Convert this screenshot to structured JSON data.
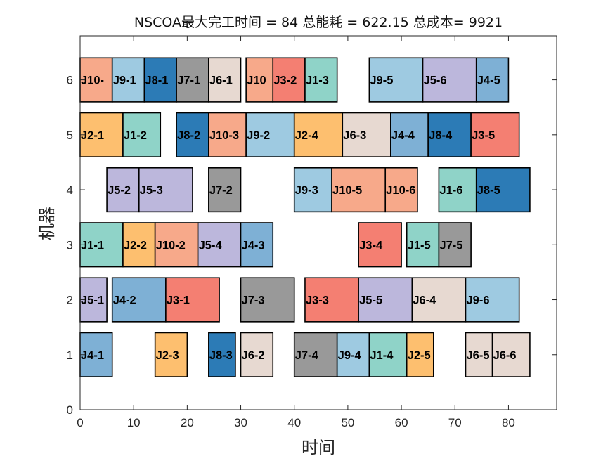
{
  "chart_data": {
    "type": "gantt",
    "title": "NSCOA最大完工时间 = 84 总能耗 = 622.15 总成本= 9921",
    "xlabel": "时间",
    "ylabel": "机器",
    "xlim": [
      0,
      89
    ],
    "ylim": [
      0,
      6.8
    ],
    "xticks": [
      "0",
      "10",
      "20",
      "30",
      "40",
      "50",
      "60",
      "70",
      "80"
    ],
    "yticks": [
      "0",
      "1",
      "2",
      "3",
      "4",
      "5",
      "6"
    ],
    "job_colors": {
      "J1": "#8fd3c8",
      "J2": "#fdbf6f",
      "J3": "#f47f72",
      "J4": "#7eb0d5",
      "J5": "#bcb7dc",
      "J6": "#e7d9d1",
      "J7": "#999999",
      "J8": "#2c7bb6",
      "J9": "#9ecae1",
      "J10": "#f7a98a"
    },
    "tasks": [
      {
        "machine": 6,
        "job": "J10",
        "label": "J10-",
        "start": 0,
        "end": 6
      },
      {
        "machine": 6,
        "job": "J9",
        "label": "J9-1",
        "start": 6,
        "end": 12
      },
      {
        "machine": 6,
        "job": "J8",
        "label": "J8-1",
        "start": 12,
        "end": 18
      },
      {
        "machine": 6,
        "job": "J7",
        "label": "J7-1",
        "start": 18,
        "end": 24
      },
      {
        "machine": 6,
        "job": "J6",
        "label": "J6-1",
        "start": 24,
        "end": 30
      },
      {
        "machine": 6,
        "job": "J10",
        "label": "J10",
        "start": 31,
        "end": 36
      },
      {
        "machine": 6,
        "job": "J3",
        "label": "J3-2",
        "start": 36,
        "end": 42
      },
      {
        "machine": 6,
        "job": "J1",
        "label": "J1-3",
        "start": 42,
        "end": 48
      },
      {
        "machine": 6,
        "job": "J9",
        "label": "J9-5",
        "start": 54,
        "end": 64
      },
      {
        "machine": 6,
        "job": "J5",
        "label": "J5-6",
        "start": 64,
        "end": 74
      },
      {
        "machine": 6,
        "job": "J4",
        "label": "J4-5",
        "start": 74,
        "end": 80
      },
      {
        "machine": 5,
        "job": "J2",
        "label": "J2-1",
        "start": 0,
        "end": 8
      },
      {
        "machine": 5,
        "job": "J1",
        "label": "J1-2",
        "start": 8,
        "end": 15
      },
      {
        "machine": 5,
        "job": "J8",
        "label": "J8-2",
        "start": 18,
        "end": 24
      },
      {
        "machine": 5,
        "job": "J10",
        "label": "J10-3",
        "start": 24,
        "end": 31
      },
      {
        "machine": 5,
        "job": "J9",
        "label": "J9-2",
        "start": 31,
        "end": 40
      },
      {
        "machine": 5,
        "job": "J2",
        "label": "J2-4",
        "start": 40,
        "end": 49
      },
      {
        "machine": 5,
        "job": "J6",
        "label": "J6-3",
        "start": 49,
        "end": 58
      },
      {
        "machine": 5,
        "job": "J4",
        "label": "J4-4",
        "start": 58,
        "end": 65
      },
      {
        "machine": 5,
        "job": "J8",
        "label": "J8-4",
        "start": 65,
        "end": 73
      },
      {
        "machine": 5,
        "job": "J3",
        "label": "J3-5",
        "start": 73,
        "end": 82
      },
      {
        "machine": 4,
        "job": "J5",
        "label": "J5-2",
        "start": 5,
        "end": 11
      },
      {
        "machine": 4,
        "job": "J5",
        "label": "J5-3",
        "start": 11,
        "end": 21
      },
      {
        "machine": 4,
        "job": "J7",
        "label": "J7-2",
        "start": 24,
        "end": 30
      },
      {
        "machine": 4,
        "job": "J9",
        "label": "J9-3",
        "start": 40,
        "end": 47
      },
      {
        "machine": 4,
        "job": "J10",
        "label": "J10-5",
        "start": 47,
        "end": 57
      },
      {
        "machine": 4,
        "job": "J10",
        "label": "J10-6",
        "start": 57,
        "end": 63
      },
      {
        "machine": 4,
        "job": "J1",
        "label": "J1-6",
        "start": 67,
        "end": 74
      },
      {
        "machine": 4,
        "job": "J8",
        "label": "J8-5",
        "start": 74,
        "end": 84
      },
      {
        "machine": 3,
        "job": "J1",
        "label": "J1-1",
        "start": 0,
        "end": 8
      },
      {
        "machine": 3,
        "job": "J2",
        "label": "J2-2",
        "start": 8,
        "end": 14
      },
      {
        "machine": 3,
        "job": "J10",
        "label": "J10-2",
        "start": 14,
        "end": 22
      },
      {
        "machine": 3,
        "job": "J5",
        "label": "J5-4",
        "start": 22,
        "end": 30
      },
      {
        "machine": 3,
        "job": "J4",
        "label": "J4-3",
        "start": 30,
        "end": 36
      },
      {
        "machine": 3,
        "job": "J3",
        "label": "J3-4",
        "start": 52,
        "end": 60
      },
      {
        "machine": 3,
        "job": "J1",
        "label": "J1-5",
        "start": 61,
        "end": 67
      },
      {
        "machine": 3,
        "job": "J7",
        "label": "J7-5",
        "start": 67,
        "end": 73
      },
      {
        "machine": 2,
        "job": "J5",
        "label": "J5-1",
        "start": 0,
        "end": 5
      },
      {
        "machine": 2,
        "job": "J4",
        "label": "J4-2",
        "start": 6,
        "end": 16
      },
      {
        "machine": 2,
        "job": "J3",
        "label": "J3-1",
        "start": 16,
        "end": 26
      },
      {
        "machine": 2,
        "job": "J7",
        "label": "J7-3",
        "start": 30,
        "end": 40
      },
      {
        "machine": 2,
        "job": "J3",
        "label": "J3-3",
        "start": 42,
        "end": 52
      },
      {
        "machine": 2,
        "job": "J5",
        "label": "J5-5",
        "start": 52,
        "end": 62
      },
      {
        "machine": 2,
        "job": "J6",
        "label": "J6-4",
        "start": 62,
        "end": 72
      },
      {
        "machine": 2,
        "job": "J9",
        "label": "J9-6",
        "start": 72,
        "end": 82
      },
      {
        "machine": 1,
        "job": "J4",
        "label": "J4-1",
        "start": 0,
        "end": 6
      },
      {
        "machine": 1,
        "job": "J2",
        "label": "J2-3",
        "start": 14,
        "end": 20
      },
      {
        "machine": 1,
        "job": "J8",
        "label": "J8-3",
        "start": 24,
        "end": 29
      },
      {
        "machine": 1,
        "job": "J6",
        "label": "J6-2",
        "start": 30,
        "end": 36
      },
      {
        "machine": 1,
        "job": "J7",
        "label": "J7-4",
        "start": 40,
        "end": 48
      },
      {
        "machine": 1,
        "job": "J9",
        "label": "J9-4",
        "start": 48,
        "end": 54
      },
      {
        "machine": 1,
        "job": "J1",
        "label": "J1-4",
        "start": 54,
        "end": 61
      },
      {
        "machine": 1,
        "job": "J2",
        "label": "J2-5",
        "start": 61,
        "end": 66
      },
      {
        "machine": 1,
        "job": "J6",
        "label": "J6-5",
        "start": 72,
        "end": 77
      },
      {
        "machine": 1,
        "job": "J6",
        "label": "J6-6",
        "start": 77,
        "end": 84
      }
    ]
  }
}
